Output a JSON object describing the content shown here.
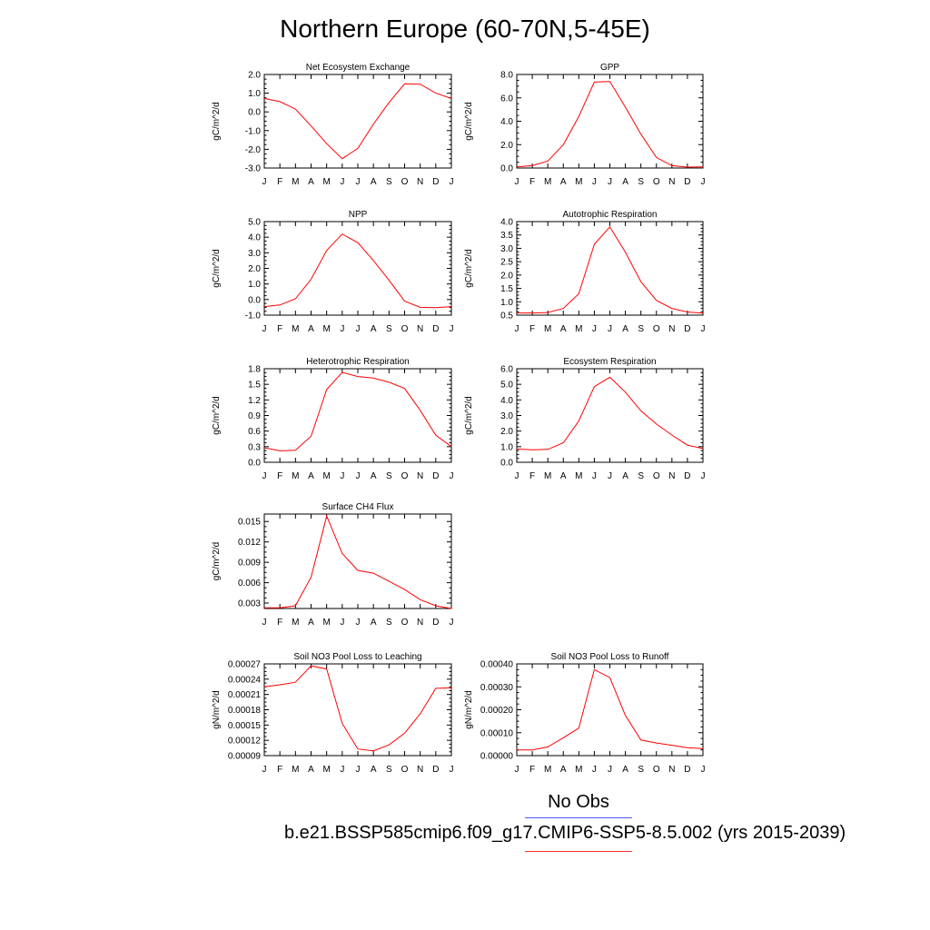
{
  "title": "Northern Europe (60-70N,5-45E)",
  "legend": {
    "no_obs": "No Obs",
    "case": "b.e21.BSSP585cmip6.f09_g17.CMIP6-SSP5-8.5.002 (yrs 2015-2039)",
    "obs_color": "#4a5cff",
    "case_color": "#ff2a2a"
  },
  "chart_data": [
    {
      "type": "line",
      "title": "Net Ecosystem Exchange",
      "ylabel": "gC/m^2/d",
      "x": [
        "J",
        "F",
        "M",
        "A",
        "M",
        "J",
        "J",
        "A",
        "S",
        "O",
        "N",
        "D",
        "J"
      ],
      "ylim": [
        -3.0,
        2.0
      ],
      "yticks": [
        "2.0",
        "1.0",
        "0.0",
        "-1.0",
        "-2.0",
        "-3.0"
      ],
      "series": [
        {
          "values": [
            0.72,
            0.55,
            0.15,
            -0.75,
            -1.7,
            -2.5,
            -1.95,
            -0.65,
            0.5,
            1.5,
            1.48,
            1.0,
            0.72
          ],
          "color": "#ff0000"
        }
      ]
    },
    {
      "type": "line",
      "title": "GPP",
      "ylabel": "gC/m^2/d",
      "x": [
        "J",
        "F",
        "M",
        "A",
        "M",
        "J",
        "J",
        "A",
        "S",
        "O",
        "N",
        "D",
        "J"
      ],
      "ylim": [
        0.0,
        8.0
      ],
      "yticks": [
        "8.0",
        "6.0",
        "4.0",
        "2.0",
        "0.0"
      ],
      "series": [
        {
          "values": [
            0.1,
            0.2,
            0.6,
            2.0,
            4.4,
            7.35,
            7.4,
            5.2,
            2.9,
            0.9,
            0.2,
            0.08,
            0.1
          ],
          "color": "#ff0000"
        }
      ]
    },
    {
      "type": "line",
      "title": "NPP",
      "ylabel": "gC/m^2/d",
      "x": [
        "J",
        "F",
        "M",
        "A",
        "M",
        "J",
        "J",
        "A",
        "S",
        "O",
        "N",
        "D",
        "J"
      ],
      "ylim": [
        -1.0,
        5.0
      ],
      "yticks": [
        "5.0",
        "4.0",
        "3.0",
        "2.0",
        "1.0",
        "0.0",
        "-1.0"
      ],
      "series": [
        {
          "values": [
            -0.45,
            -0.35,
            0.05,
            1.3,
            3.15,
            4.2,
            3.65,
            2.5,
            1.25,
            -0.1,
            -0.5,
            -0.52,
            -0.45
          ],
          "color": "#ff0000"
        }
      ]
    },
    {
      "type": "line",
      "title": "Autotrophic Respiration",
      "ylabel": "gC/m^2/d",
      "x": [
        "J",
        "F",
        "M",
        "A",
        "M",
        "J",
        "J",
        "A",
        "S",
        "O",
        "N",
        "D",
        "J"
      ],
      "ylim": [
        0.5,
        4.0
      ],
      "yticks": [
        "4.0",
        "3.5",
        "3.0",
        "2.5",
        "2.0",
        "1.5",
        "1.0",
        "0.5"
      ],
      "series": [
        {
          "values": [
            0.58,
            0.58,
            0.6,
            0.75,
            1.3,
            3.15,
            3.8,
            2.85,
            1.75,
            1.05,
            0.75,
            0.62,
            0.57
          ],
          "color": "#ff0000"
        }
      ]
    },
    {
      "type": "line",
      "title": "Heterotrophic Respiration",
      "ylabel": "gC/m^2/d",
      "x": [
        "J",
        "F",
        "M",
        "A",
        "M",
        "J",
        "J",
        "A",
        "S",
        "O",
        "N",
        "D",
        "J"
      ],
      "ylim": [
        0.0,
        1.8
      ],
      "yticks": [
        "1.8",
        "1.5",
        "1.2",
        "0.9",
        "0.6",
        "0.3",
        "0.0"
      ],
      "series": [
        {
          "values": [
            0.28,
            0.22,
            0.23,
            0.5,
            1.4,
            1.73,
            1.65,
            1.62,
            1.54,
            1.42,
            1.0,
            0.52,
            0.3
          ],
          "color": "#ff0000"
        }
      ]
    },
    {
      "type": "line",
      "title": "Ecosystem Respiration",
      "ylabel": "gC/m^2/d",
      "x": [
        "J",
        "F",
        "M",
        "A",
        "M",
        "J",
        "J",
        "A",
        "S",
        "O",
        "N",
        "D",
        "J"
      ],
      "ylim": [
        0.0,
        6.0
      ],
      "yticks": [
        "6.0",
        "5.0",
        "4.0",
        "3.0",
        "2.0",
        "1.0",
        "0.0"
      ],
      "series": [
        {
          "values": [
            0.85,
            0.8,
            0.83,
            1.25,
            2.65,
            4.85,
            5.45,
            4.5,
            3.3,
            2.45,
            1.75,
            1.1,
            0.88
          ],
          "color": "#ff0000"
        }
      ]
    },
    {
      "type": "line",
      "title": "Surface CH4 Flux",
      "ylabel": "gC/m^2/d",
      "x": [
        "J",
        "F",
        "M",
        "A",
        "M",
        "J",
        "J",
        "A",
        "S",
        "O",
        "N",
        "D",
        "J"
      ],
      "ylim": [
        0.0022,
        0.0161
      ],
      "yticks": [
        "0.015",
        "0.012",
        "0.009",
        "0.006",
        "0.003"
      ],
      "ytick_values": [
        0.015,
        0.012,
        0.009,
        0.006,
        0.003
      ],
      "series": [
        {
          "values": [
            0.0023,
            0.0023,
            0.0026,
            0.0068,
            0.0158,
            0.0103,
            0.0078,
            0.0074,
            0.0062,
            0.005,
            0.0035,
            0.0026,
            0.0022
          ],
          "color": "#ff0000"
        }
      ]
    },
    {
      "type": "line",
      "title": "Soil NO3 Pool Loss to Leaching",
      "ylabel": "gN/m^2/d",
      "x": [
        "J",
        "F",
        "M",
        "A",
        "M",
        "J",
        "J",
        "A",
        "S",
        "O",
        "N",
        "D",
        "J"
      ],
      "ylim": [
        9e-05,
        0.00027
      ],
      "yticks": [
        "0.00027",
        "0.00024",
        "0.00021",
        "0.00018",
        "0.00015",
        "0.00012",
        "0.00009"
      ],
      "series": [
        {
          "values": [
            0.000225,
            0.000229,
            0.000234,
            0.000266,
            0.00026,
            0.000153,
            0.000103,
            9.95e-05,
            0.000111,
            0.000134,
            0.000172,
            0.000222,
            0.000223
          ],
          "color": "#ff0000"
        }
      ]
    },
    {
      "type": "line",
      "title": "Soil NO3 Pool Loss to Runoff",
      "ylabel": "gN/m^2/d",
      "x": [
        "J",
        "F",
        "M",
        "A",
        "M",
        "J",
        "J",
        "A",
        "S",
        "O",
        "N",
        "D",
        "J"
      ],
      "ylim": [
        0.0,
        0.0004
      ],
      "yticks": [
        "0.00040",
        "0.00030",
        "0.00020",
        "0.00010",
        "0.00000"
      ],
      "series": [
        {
          "values": [
            2.5e-05,
            2.5e-05,
            3.8e-05,
            7.8e-05,
            0.00012,
            0.000375,
            0.00034,
            0.000175,
            6.8e-05,
            5.5e-05,
            4.5e-05,
            3.5e-05,
            3e-05
          ],
          "color": "#ff0000"
        }
      ]
    }
  ]
}
